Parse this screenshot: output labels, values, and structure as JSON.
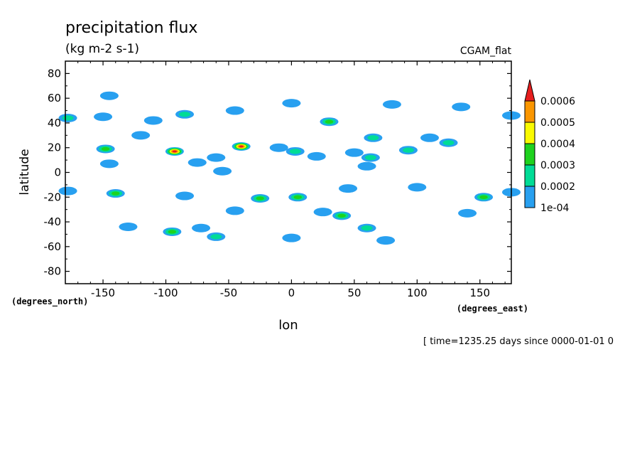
{
  "chart_data": {
    "type": "heatmap",
    "title": "precipitation flux",
    "units": "(kg m-2 s-1)",
    "dataset": "CGAM_flat",
    "xlabel": "lon",
    "ylabel": "latitude",
    "x_units": "(degrees_east)",
    "y_units": "(degrees_north)",
    "footer": "[ time=1235.25 days since 0000-01-01 0",
    "xlim": [
      -180,
      175
    ],
    "ylim": [
      -90,
      90
    ],
    "x_ticks": [
      -150,
      -100,
      -50,
      0,
      50,
      100,
      150
    ],
    "x_tick_labels": [
      "-150",
      "-100",
      "-50",
      "0",
      "50",
      "100",
      "150"
    ],
    "y_ticks": [
      80,
      60,
      40,
      20,
      0,
      -20,
      -40,
      -60,
      -80
    ],
    "y_tick_labels": [
      "80",
      "60",
      "40",
      "20",
      "0",
      "-20",
      "-40",
      "-60",
      "-80"
    ],
    "colorbar": {
      "levels": [
        0.0001,
        0.0002,
        0.0003,
        0.0004,
        0.0005,
        0.0006
      ],
      "labels": [
        "1e-04",
        "0.0002",
        "0.0003",
        "0.0004",
        "0.0005",
        "0.0006"
      ],
      "colors": [
        "#28a0f0",
        "#00dc96",
        "#1ed21e",
        "#fafa00",
        "#fa9600",
        "#e61e1e"
      ],
      "extend": "max"
    },
    "cells": [
      {
        "lon": -93,
        "lat": 17,
        "value": 0.00062
      },
      {
        "lon": -40,
        "lat": 21,
        "value": 0.00061
      },
      {
        "lon": 5,
        "lat": -20,
        "value": 0.00032
      },
      {
        "lon": 30,
        "lat": 41,
        "value": 0.00031
      },
      {
        "lon": 40,
        "lat": -35,
        "value": 0.00031
      },
      {
        "lon": -25,
        "lat": -21,
        "value": 0.00031
      },
      {
        "lon": -148,
        "lat": 19,
        "value": 0.00031
      },
      {
        "lon": -140,
        "lat": -17,
        "value": 0.00031
      },
      {
        "lon": 153,
        "lat": -20,
        "value": 0.00031
      },
      {
        "lon": -95,
        "lat": -48,
        "value": 0.00031
      },
      {
        "lon": -85,
        "lat": 47,
        "value": 0.00025
      },
      {
        "lon": 60,
        "lat": -45,
        "value": 0.00025
      },
      {
        "lon": -60,
        "lat": -52,
        "value": 0.00021
      },
      {
        "lon": 125,
        "lat": 24,
        "value": 0.00021
      },
      {
        "lon": 93,
        "lat": 18,
        "value": 0.00021
      },
      {
        "lon": 65,
        "lat": 28,
        "value": 0.00021
      },
      {
        "lon": 3,
        "lat": 17,
        "value": 0.00021
      },
      {
        "lon": -178,
        "lat": 44,
        "value": 0.00021
      },
      {
        "lon": 63,
        "lat": 12,
        "value": 0.00021
      },
      {
        "lon": -45,
        "lat": 50,
        "value": 0.00012
      },
      {
        "lon": 0,
        "lat": 56,
        "value": 0.00012
      },
      {
        "lon": 80,
        "lat": 55,
        "value": 0.00012
      },
      {
        "lon": 135,
        "lat": 53,
        "value": 0.00012
      },
      {
        "lon": -150,
        "lat": 45,
        "value": 0.00012
      },
      {
        "lon": -120,
        "lat": 30,
        "value": 0.00012
      },
      {
        "lon": 75,
        "lat": -55,
        "value": 0.00012
      },
      {
        "lon": 0,
        "lat": -53,
        "value": 0.00012
      },
      {
        "lon": 45,
        "lat": -13,
        "value": 0.00012
      },
      {
        "lon": 100,
        "lat": -12,
        "value": 0.00012
      },
      {
        "lon": 140,
        "lat": -33,
        "value": 0.00012
      },
      {
        "lon": -130,
        "lat": -44,
        "value": 0.00012
      },
      {
        "lon": -45,
        "lat": -31,
        "value": 0.00012
      },
      {
        "lon": 25,
        "lat": -32,
        "value": 0.00012
      },
      {
        "lon": -178,
        "lat": -15,
        "value": 0.00012
      },
      {
        "lon": 175,
        "lat": 46,
        "value": 0.00012
      },
      {
        "lon": 50,
        "lat": 16,
        "value": 0.00012
      },
      {
        "lon": 20,
        "lat": 13,
        "value": 0.00012
      },
      {
        "lon": -75,
        "lat": 8,
        "value": 0.00012
      },
      {
        "lon": -60,
        "lat": 12,
        "value": 0.00012
      },
      {
        "lon": -55,
        "lat": 1,
        "value": 0.00012
      },
      {
        "lon": -110,
        "lat": 42,
        "value": 0.00012
      },
      {
        "lon": -145,
        "lat": 62,
        "value": 0.00012
      },
      {
        "lon": 175,
        "lat": -16,
        "value": 0.00012
      },
      {
        "lon": -85,
        "lat": -19,
        "value": 0.00012
      },
      {
        "lon": -72,
        "lat": -45,
        "value": 0.00012
      },
      {
        "lon": 110,
        "lat": 28,
        "value": 0.00012
      },
      {
        "lon": -145,
        "lat": 7,
        "value": 0.00012
      },
      {
        "lon": -10,
        "lat": 20,
        "value": 0.00012
      },
      {
        "lon": 60,
        "lat": 5,
        "value": 0.00012
      }
    ]
  }
}
